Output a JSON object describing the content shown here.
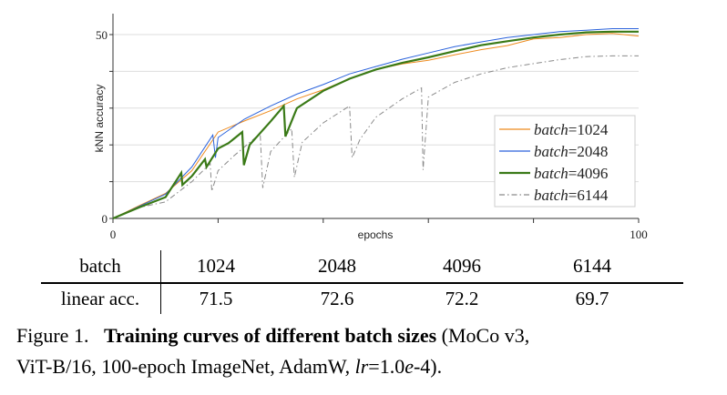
{
  "chart_data": {
    "type": "line",
    "xlabel": "epochs",
    "ylabel": "kNN accuracy",
    "xlim": [
      0,
      100
    ],
    "ylim": [
      0,
      55.7
    ],
    "xticks": [
      0,
      20,
      40,
      60,
      80,
      100
    ],
    "xtick_labels": [
      "0",
      "",
      "",
      "",
      "",
      "100"
    ],
    "yticks": [
      0,
      10,
      20,
      30,
      40,
      50
    ],
    "ytick_labels": [
      "0",
      "",
      "",
      "",
      "",
      "50"
    ],
    "grid": "horizontal",
    "legend": "bottom-right",
    "series": [
      {
        "name": "batch=1024",
        "label_var": "batch",
        "label_val": "=1024",
        "color": "#ee8b1e",
        "style": "solid",
        "points": [
          [
            0,
            0
          ],
          [
            5,
            3.5
          ],
          [
            10,
            6.8
          ],
          [
            15,
            13
          ],
          [
            20,
            23.5
          ],
          [
            25,
            26.5
          ],
          [
            30,
            29.3
          ],
          [
            35,
            32.5
          ],
          [
            40,
            35
          ],
          [
            45,
            38
          ],
          [
            50,
            40.5
          ],
          [
            55,
            42
          ],
          [
            60,
            43
          ],
          [
            65,
            44.5
          ],
          [
            70,
            45.9
          ],
          [
            75,
            47
          ],
          [
            80,
            48.8
          ],
          [
            85,
            49.2
          ],
          [
            90,
            50
          ],
          [
            95,
            50.3
          ],
          [
            100,
            49.6
          ]
        ]
      },
      {
        "name": "batch=2048",
        "label_var": "batch",
        "label_val": "=2048",
        "color": "#2a62dc",
        "style": "solid",
        "points": [
          [
            0,
            0
          ],
          [
            5,
            3.3
          ],
          [
            10,
            6.6
          ],
          [
            15,
            14
          ],
          [
            19,
            22.7
          ],
          [
            19.5,
            16.5
          ],
          [
            20,
            22
          ],
          [
            25,
            27
          ],
          [
            30,
            30.6
          ],
          [
            35,
            33.8
          ],
          [
            40,
            36.4
          ],
          [
            45,
            39.3
          ],
          [
            50,
            41.3
          ],
          [
            55,
            43.3
          ],
          [
            60,
            45
          ],
          [
            65,
            46.7
          ],
          [
            70,
            48
          ],
          [
            75,
            49.2
          ],
          [
            80,
            50
          ],
          [
            85,
            50.8
          ],
          [
            90,
            51.2
          ],
          [
            95,
            51.6
          ],
          [
            100,
            51.6
          ]
        ]
      },
      {
        "name": "batch=4096",
        "label_var": "batch",
        "label_val": "=4096",
        "color": "#3a7a17",
        "style": "solid",
        "points": [
          [
            0,
            0
          ],
          [
            5,
            3
          ],
          [
            10,
            5.8
          ],
          [
            13,
            12.4
          ],
          [
            13.2,
            9.1
          ],
          [
            15,
            11.5
          ],
          [
            17.5,
            16.1
          ],
          [
            17.8,
            14
          ],
          [
            20,
            19
          ],
          [
            22,
            20.5
          ],
          [
            24.6,
            23.5
          ],
          [
            24.9,
            14.5
          ],
          [
            26,
            20
          ],
          [
            30,
            26.4
          ],
          [
            32.5,
            30.6
          ],
          [
            32.8,
            22.3
          ],
          [
            35,
            30
          ],
          [
            40,
            34.7
          ],
          [
            45,
            38
          ],
          [
            50,
            40.5
          ],
          [
            55,
            42.3
          ],
          [
            60,
            43.8
          ],
          [
            65,
            45.5
          ],
          [
            70,
            47.1
          ],
          [
            75,
            48.2
          ],
          [
            80,
            49.2
          ],
          [
            85,
            50
          ],
          [
            90,
            50.6
          ],
          [
            95,
            50.8
          ],
          [
            100,
            50.8
          ]
        ]
      },
      {
        "name": "batch=6144",
        "label_var": "batch",
        "label_val": "=6144",
        "color": "#8a8a8a",
        "style": "dashdot",
        "points": [
          [
            0,
            0
          ],
          [
            5,
            3
          ],
          [
            10,
            4.5
          ],
          [
            15,
            10
          ],
          [
            18.5,
            14.9
          ],
          [
            18.8,
            7.4
          ],
          [
            20,
            13
          ],
          [
            23,
            17
          ],
          [
            28,
            23.1
          ],
          [
            28.5,
            8.3
          ],
          [
            30,
            18.2
          ],
          [
            34,
            24.4
          ],
          [
            34.5,
            11.2
          ],
          [
            36,
            20.7
          ],
          [
            40,
            26
          ],
          [
            45,
            30.6
          ],
          [
            45.5,
            16.5
          ],
          [
            47,
            21.5
          ],
          [
            50,
            27.5
          ],
          [
            55,
            32.5
          ],
          [
            58.7,
            35.5
          ],
          [
            59,
            13.2
          ],
          [
            60,
            33
          ],
          [
            65,
            37
          ],
          [
            70,
            39.3
          ],
          [
            75,
            41
          ],
          [
            80,
            42.1
          ],
          [
            85,
            43.2
          ],
          [
            90,
            44
          ],
          [
            95,
            44.2
          ],
          [
            100,
            44.2
          ]
        ]
      }
    ]
  },
  "table": {
    "header_label": "batch",
    "header_values": [
      "1024",
      "2048",
      "4096",
      "6144"
    ],
    "row_label": "linear acc.",
    "row_values": [
      "71.5",
      "72.6",
      "72.2",
      "69.7"
    ]
  },
  "caption": {
    "prefix": "Figure 1.",
    "bold": "Training curves of different batch sizes",
    "rest1": " (MoCo v3,",
    "rest2": "ViT-B/16, 100-epoch ImageNet, AdamW, ",
    "lr_var": "lr",
    "rest3": "=1.0",
    "e_var": "e",
    "rest4": "-4)."
  }
}
